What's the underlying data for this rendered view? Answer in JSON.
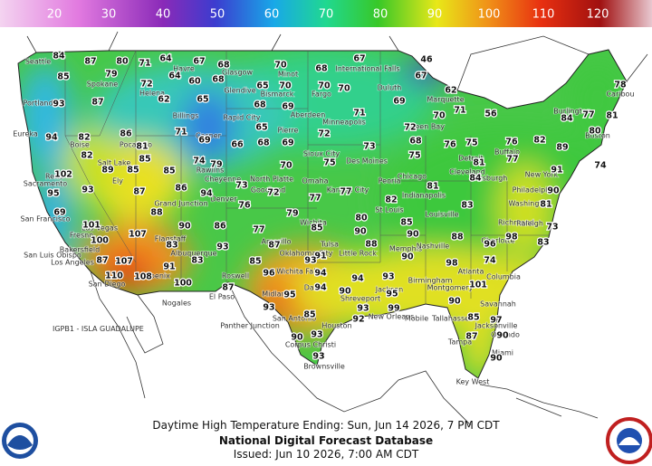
{
  "legend": {
    "range": [
      10,
      130
    ],
    "ticks": [
      20,
      30,
      40,
      50,
      60,
      70,
      80,
      90,
      100,
      110,
      120
    ]
  },
  "temperatures": [
    84,
    87,
    80,
    71,
    64,
    67,
    68,
    70,
    68,
    67,
    46,
    85,
    79,
    72,
    64,
    60,
    68,
    65,
    70,
    70,
    70,
    67,
    62,
    93,
    87,
    62,
    65,
    68,
    69,
    71,
    69,
    70,
    71,
    56,
    78,
    77,
    81,
    84,
    94,
    82,
    86,
    81,
    71,
    69,
    66,
    65,
    68,
    69,
    72,
    73,
    72,
    68,
    76,
    75,
    76,
    82,
    89,
    80,
    82,
    85,
    74,
    79,
    70,
    75,
    75,
    81,
    77,
    91,
    74,
    102,
    89,
    85,
    85,
    86,
    94,
    73,
    93,
    87,
    72,
    77,
    77,
    82,
    81,
    84,
    95,
    69,
    88,
    90,
    76,
    79,
    80,
    85,
    83,
    90,
    81,
    101,
    107,
    86,
    77,
    73,
    100,
    83,
    93,
    87,
    85,
    90,
    88,
    90,
    88,
    96,
    98,
    83,
    87,
    107,
    83,
    85,
    91,
    90,
    98,
    74,
    110,
    108,
    91,
    93,
    96,
    94,
    94,
    93,
    95,
    90,
    101,
    100,
    87,
    95,
    94,
    90,
    93,
    99,
    93,
    85,
    92,
    85,
    97,
    90,
    93,
    93,
    87,
    90,
    90
  ],
  "cities": [
    "Seattle",
    "Spokane",
    "Havre",
    "Glasgow",
    "Minot",
    "International Falls",
    "Portland",
    "Helena",
    "Glendive",
    "Bismarck",
    "Fargo",
    "Duluth",
    "Boise",
    "Billings",
    "Rapid City",
    "Aberdeen",
    "Minneapolis",
    "Green Bay",
    "Marquette",
    "Caribou",
    "Eureka",
    "Pocatello",
    "Casper",
    "Pierre",
    "Sioux City",
    "Des Moines",
    "Chicago",
    "Detroit",
    "Buffalo",
    "Burlington",
    "Boston",
    "Reno",
    "Salt Lake",
    "Cheyenne",
    "Rawlins",
    "North Platte",
    "Omaha",
    "Peoria",
    "Indianapolis",
    "Cleveland",
    "New York",
    "Philadelphia",
    "Sacramento",
    "San Francisco",
    "Fresno",
    "Las Vegas",
    "Ely",
    "Denver",
    "Grand Junction",
    "Goodland",
    "Wichita",
    "Kansas City",
    "St Louis",
    "Louisville",
    "Pittsburgh",
    "Washington",
    "Richmond",
    "San Luis Obispo",
    "Bakersfield",
    "Los Angeles",
    "San Diego",
    "Phoenix",
    "Nogales",
    "Flagstaff",
    "Albuquerque",
    "El Paso",
    "Roswell",
    "Amarillo",
    "Tulsa",
    "Oklahoma City",
    "Little Rock",
    "Memphis",
    "Nashville",
    "Atlanta",
    "Charlotte",
    "Raleigh",
    "Wichita Falls",
    "Dallas",
    "Midland",
    "Shreveport",
    "Jackson",
    "Birmingham",
    "Montgomery",
    "Columbia",
    "Savannah",
    "Panther Junction",
    "San Antonio",
    "Houston",
    "New Orleans",
    "Mobile",
    "Tallahassee",
    "Jacksonville",
    "Orlando",
    "Tampa",
    "Corpus Christi",
    "Brownsville",
    "Miami",
    "Key West"
  ],
  "offshore_label": "IGPB1 - ISLA GUADALUPE",
  "caption": {
    "line1": "Daytime High Temperature Ending: Sun, Jun 14 2026, 7 PM CDT",
    "line2": "National Digital Forecast Database",
    "line3": "Issued: Jun 10 2026, 7:00 AM CDT"
  }
}
